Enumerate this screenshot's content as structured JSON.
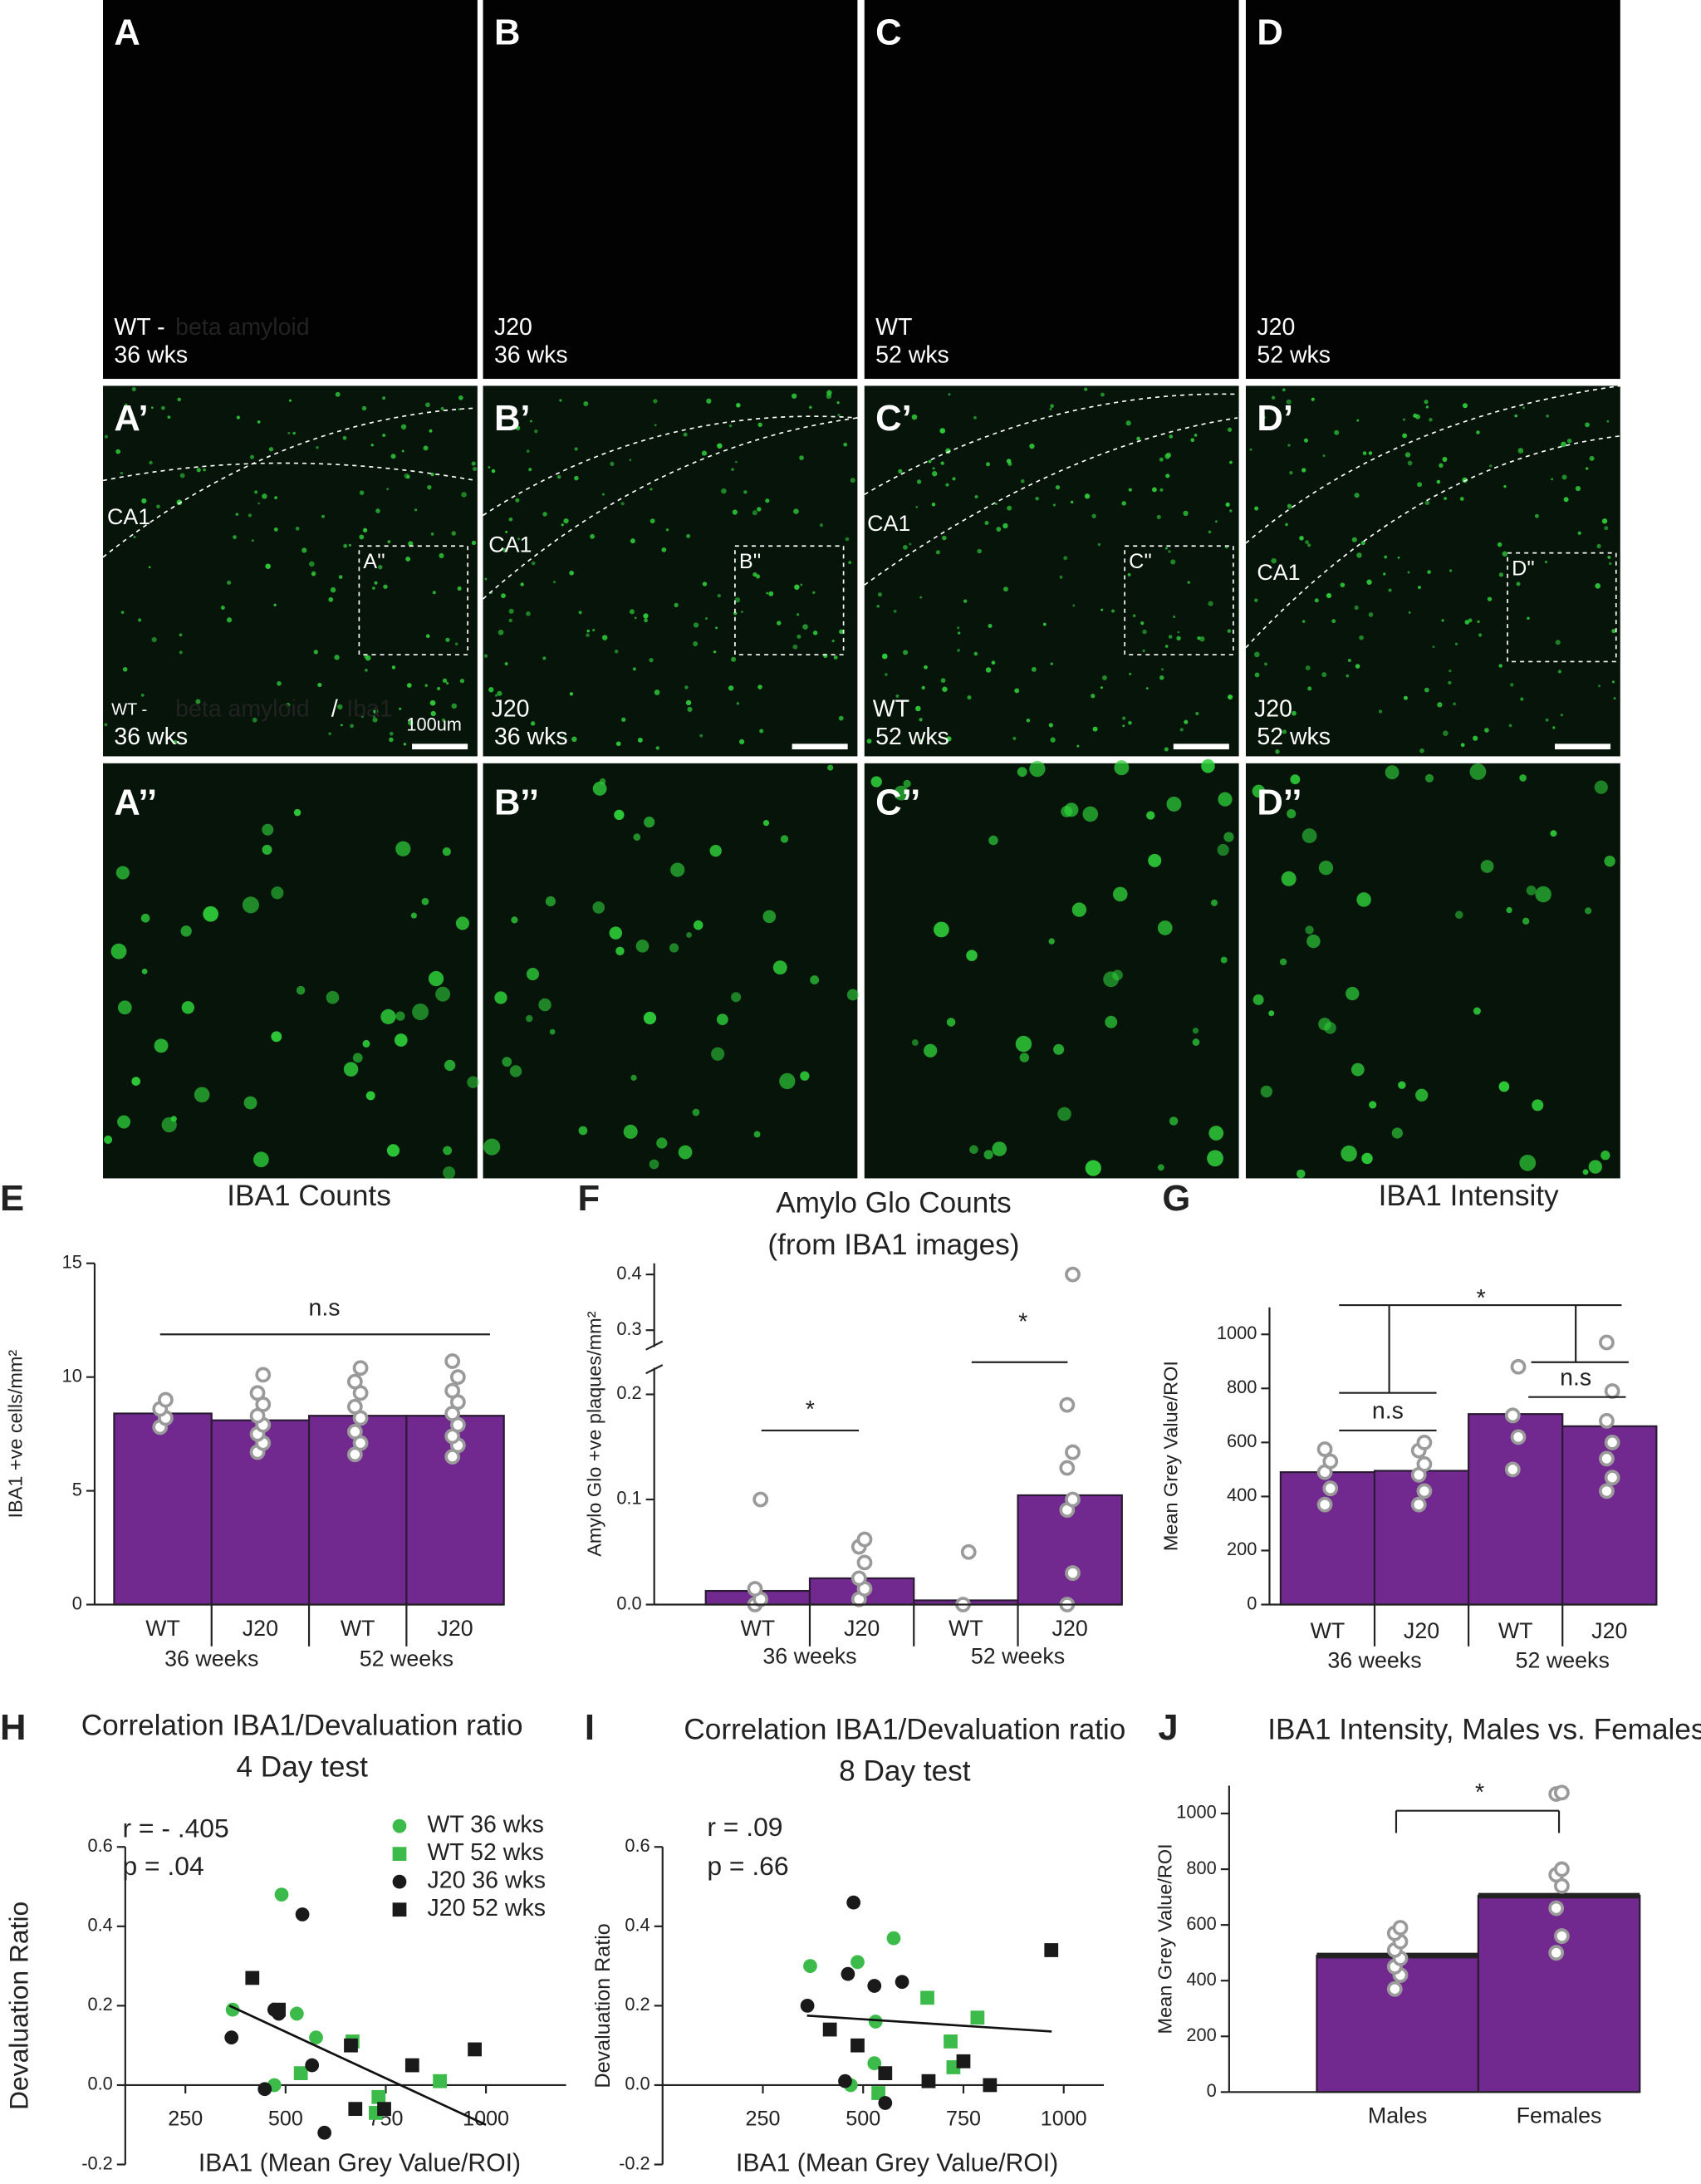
{
  "micrographs": {
    "amyloid": [
      {
        "label": "A",
        "group": "WT -",
        "stain": "beta amyloid",
        "age": "36 wks"
      },
      {
        "label": "B",
        "group": "J20",
        "age": "36 wks"
      },
      {
        "label": "C",
        "group": "WT",
        "age": "52 wks"
      },
      {
        "label": "D",
        "group": "J20",
        "age": "52 wks"
      }
    ],
    "iba1": [
      {
        "label": "A’",
        "region": "CA1",
        "inset": "A''",
        "group": "WT -",
        "stain": "beta amyloid",
        "separator": "/",
        "stain2": "Iba1",
        "age": "36 wks",
        "scale": "100um"
      },
      {
        "label": "B’",
        "region": "CA1",
        "inset": "B''",
        "group": "J20",
        "age": "36 wks"
      },
      {
        "label": "C’",
        "region": "CA1",
        "inset": "C''",
        "group": "WT",
        "age": "52 wks"
      },
      {
        "label": "D’",
        "region": "CA1",
        "inset": "D''",
        "group": "J20",
        "age": "52 wks"
      }
    ],
    "zoom": [
      {
        "label": "A’’"
      },
      {
        "label": "B’’"
      },
      {
        "label": "C’’"
      },
      {
        "label": "D’’"
      }
    ]
  },
  "chart_data": [
    {
      "type": "bar",
      "panel": "E",
      "title": "IBA1 Counts",
      "ylabel": "IBA1 +ve cells/mm²",
      "categories": [
        "WT",
        "J20",
        "WT",
        "J20"
      ],
      "groups": [
        "36 weeks",
        "52 weeks"
      ],
      "values": [
        8.4,
        8.1,
        8.3,
        8.3
      ],
      "color": "#71298f",
      "points": [
        [
          7.8,
          8.2,
          8.6,
          9.0
        ],
        [
          6.7,
          7.1,
          7.5,
          7.9,
          8.3,
          8.8,
          9.3,
          10.1
        ],
        [
          6.6,
          7.1,
          7.6,
          8.2,
          8.7,
          9.3,
          9.8,
          10.4
        ],
        [
          6.5,
          7.0,
          7.4,
          7.9,
          8.4,
          8.9,
          9.4,
          10.0,
          10.7
        ]
      ],
      "ylim": [
        0,
        15
      ],
      "yticks": [
        0,
        5,
        10,
        15
      ],
      "annotations": [
        "n.s"
      ]
    },
    {
      "type": "bar",
      "panel": "F",
      "title": "Amylo Glo Counts",
      "subtitle": "(from IBA1 images)",
      "ylabel": "Amylo Glo +ve plaques/mm²",
      "categories": [
        "WT",
        "J20",
        "WT",
        "J20"
      ],
      "groups": [
        "36 weeks",
        "52 weeks"
      ],
      "values": [
        0.013,
        0.025,
        0.004,
        0.104
      ],
      "color": "#71298f",
      "points": [
        [
          0,
          0.005,
          0.015,
          0.1
        ],
        [
          0.005,
          0.015,
          0.025,
          0.04,
          0.055,
          0.062
        ],
        [
          0,
          0.05
        ],
        [
          0,
          0.03,
          0.09,
          0.1,
          0.13,
          0.145,
          0.19,
          0.4
        ]
      ],
      "ylim": [
        0,
        0.42
      ],
      "axis_break": [
        0.22,
        0.28
      ],
      "yticks": [
        {
          "value": 0,
          "label": "0.0"
        },
        0.1,
        0.2,
        0.3,
        0.4
      ],
      "annotations": [
        "*",
        "*"
      ]
    },
    {
      "type": "bar",
      "panel": "G",
      "title": "IBA1 Intensity",
      "ylabel": "Mean Grey Value/ROI",
      "categories": [
        "WT",
        "J20",
        "WT",
        "J20"
      ],
      "groups": [
        "36 weeks",
        "52 weeks"
      ],
      "values": [
        490,
        495,
        705,
        660
      ],
      "color": "#71298f",
      "points": [
        [
          370,
          430,
          490,
          530,
          575
        ],
        [
          370,
          420,
          480,
          520,
          570,
          600
        ],
        [
          500,
          620,
          700,
          880
        ],
        [
          420,
          470,
          540,
          600,
          680,
          790,
          970
        ]
      ],
      "ylim": [
        0,
        1100
      ],
      "yticks": [
        0,
        200,
        400,
        600,
        800,
        1000
      ],
      "annotations": [
        "*",
        "n.s",
        "n.s"
      ]
    },
    {
      "type": "scatter",
      "panel": "H",
      "title": "Correlation IBA1/Devaluation ratio",
      "subtitle": "4 Day test",
      "xlabel": "IBA1 (Mean Grey Value/ROI)",
      "ylabel": "Devaluation Ratio",
      "series": [
        {
          "name": "WT 36 wks",
          "color": "#3dbb4a",
          "marker": "circle",
          "x": [
            368,
            490,
            528,
            576,
            472
          ],
          "values": [
            0.19,
            0.48,
            0.18,
            0.12,
            0.0
          ]
        },
        {
          "name": "WT 52 wks",
          "color": "#3dbb4a",
          "marker": "square",
          "x": [
            667,
            538,
            732,
            725,
            885
          ],
          "values": [
            0.11,
            0.03,
            -0.03,
            -0.07,
            0.01
          ]
        },
        {
          "name": "J20 36 wks",
          "color": "#1a1a1a",
          "marker": "circle",
          "x": [
            365,
            483,
            542,
            566,
            448,
            597,
            472
          ],
          "values": [
            0.12,
            0.18,
            0.43,
            0.05,
            -0.01,
            -0.12,
            0.19
          ]
        },
        {
          "name": "J20 52 wks",
          "color": "#1a1a1a",
          "marker": "square",
          "x": [
            417,
            483,
            663,
            816,
            972,
            674,
            746
          ],
          "values": [
            0.27,
            0.19,
            0.1,
            0.05,
            0.09,
            -0.06,
            -0.06
          ]
        }
      ],
      "trendline": {
        "x": [
          360,
          1000
        ],
        "values": [
          0.2,
          -0.1
        ]
      },
      "xlim": [
        100,
        1200
      ],
      "xticks": [
        250,
        500,
        750,
        1000
      ],
      "ylim": [
        -0.2,
        0.6
      ],
      "yticks": [
        -0.2,
        {
          "value": 0,
          "label": "0.0"
        },
        0.2,
        0.4,
        0.6
      ],
      "annotations": [
        "r = - .405",
        "p = .04"
      ]
    },
    {
      "type": "scatter",
      "panel": "I",
      "title": "Correlation IBA1/Devaluation ratio",
      "subtitle": "8 Day test",
      "xlabel": "IBA1 (Mean Grey Value/ROI)",
      "ylabel": "Devaluation Ratio",
      "series": [
        {
          "color": "#3dbb4a",
          "marker": "circle",
          "x": [
            368,
            486,
            576,
            531,
            528,
            469
          ],
          "values": [
            0.3,
            0.31,
            0.37,
            0.16,
            0.055,
            0.0
          ]
        },
        {
          "color": "#3dbb4a",
          "marker": "square",
          "x": [
            660,
            785,
            718,
            725,
            538
          ],
          "values": [
            0.22,
            0.17,
            0.11,
            0.045,
            -0.02
          ]
        },
        {
          "color": "#1a1a1a",
          "marker": "circle",
          "x": [
            361,
            476,
            528,
            597,
            462,
            555,
            455
          ],
          "values": [
            0.2,
            0.46,
            0.25,
            0.26,
            0.28,
            -0.045,
            0.01
          ]
        },
        {
          "color": "#1a1a1a",
          "marker": "square",
          "x": [
            417,
            486,
            555,
            750,
            663,
            816,
            969
          ],
          "values": [
            0.14,
            0.1,
            0.03,
            0.06,
            0.01,
            0.0,
            0.34
          ]
        }
      ],
      "trendline": {
        "x": [
          360,
          970
        ],
        "values": [
          0.175,
          0.135
        ]
      },
      "xlim": [
        0,
        1100
      ],
      "xticks": [
        250,
        500,
        750,
        1000
      ],
      "ylim": [
        -0.2,
        0.6
      ],
      "yticks": [
        -0.2,
        {
          "value": 0,
          "label": "0.0"
        },
        0.2,
        0.4,
        0.6
      ],
      "annotations": [
        "r = .09",
        "p = .66"
      ]
    },
    {
      "type": "bar",
      "panel": "J",
      "title": "IBA1 Intensity, Males vs. Females",
      "ylabel": "Mean Grey Value/ROI",
      "categories": [
        "Males",
        "Females"
      ],
      "values": [
        490,
        705
      ],
      "color": "#71298f",
      "points": [
        [
          370,
          420,
          450,
          480,
          510,
          540,
          570,
          590
        ],
        [
          500,
          560,
          660,
          740,
          780,
          800,
          1070,
          1075
        ]
      ],
      "ylim": [
        0,
        1100
      ],
      "yticks": [
        0,
        200,
        400,
        600,
        800,
        1000
      ],
      "annotations": [
        "*"
      ]
    }
  ]
}
